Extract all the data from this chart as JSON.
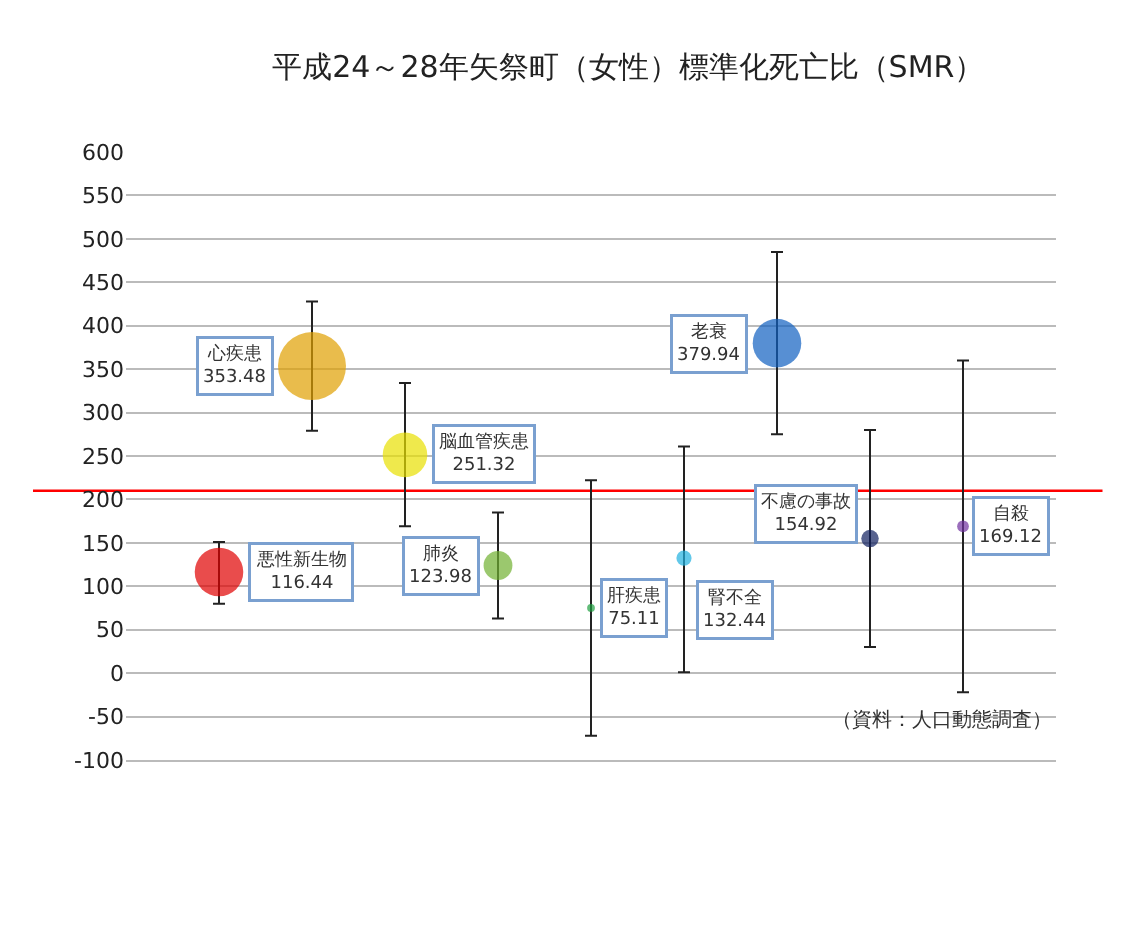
{
  "chart_data": {
    "type": "bubble",
    "title": "平成24～28年矢祭町（女性）標準化死亡比（SMR）",
    "categories": [
      null,
      null,
      null,
      null,
      null,
      null,
      null,
      null,
      null
    ],
    "series": [
      {
        "name": "悪性新生物",
        "color": "#e00000",
        "values": [
          116.44,
          null,
          null,
          null,
          null,
          null,
          null,
          null,
          null
        ],
        "sizes": [
          0.51,
          null,
          null,
          null,
          null,
          null,
          null,
          null,
          null
        ],
        "errors": [
          [
            80,
            151
          ],
          null,
          null,
          null,
          null,
          null,
          null,
          null,
          null
        ]
      },
      {
        "name": "心疾患",
        "color": "#e0a000",
        "values": [
          null,
          353.48,
          null,
          null,
          null,
          null,
          null,
          null,
          null
        ],
        "sizes": [
          null,
          1,
          null,
          null,
          null,
          null,
          null,
          null,
          null
        ],
        "errors": [
          null,
          [
            279,
            428
          ],
          null,
          null,
          null,
          null,
          null,
          null,
          null
        ]
      },
      {
        "name": "脳血管疾患",
        "color": "#e8e000",
        "values": [
          null,
          null,
          251.32,
          null,
          null,
          null,
          null,
          null,
          null
        ],
        "sizes": [
          null,
          null,
          0.43,
          null,
          null,
          null,
          null,
          null,
          null
        ],
        "errors": [
          null,
          null,
          [
            169,
            334
          ],
          null,
          null,
          null,
          null,
          null,
          null
        ]
      },
      {
        "name": "肺炎",
        "color": "#70b030",
        "values": [
          null,
          null,
          null,
          123.98,
          null,
          null,
          null,
          null,
          null
        ],
        "sizes": [
          null,
          null,
          null,
          0.18,
          null,
          null,
          null,
          null,
          null
        ],
        "errors": [
          null,
          null,
          null,
          [
            63,
            185
          ],
          null,
          null,
          null,
          null,
          null
        ]
      },
      {
        "name": "肝疾患",
        "color": "#20a040",
        "values": [
          null,
          null,
          null,
          null,
          75.11,
          null,
          null,
          null,
          null
        ],
        "sizes": [
          null,
          null,
          null,
          null,
          0.013,
          null,
          null,
          null,
          null
        ],
        "errors": [
          null,
          null,
          null,
          null,
          [
            -72,
            222
          ],
          null,
          null,
          null,
          null
        ]
      },
      {
        "name": "腎不全",
        "color": "#20b0e0",
        "values": [
          null,
          null,
          null,
          null,
          null,
          132.44,
          null,
          null,
          null
        ],
        "sizes": [
          null,
          null,
          null,
          null,
          null,
          0.05,
          null,
          null,
          null
        ],
        "errors": [
          null,
          null,
          null,
          null,
          null,
          [
            1,
            261
          ],
          null,
          null,
          null
        ]
      },
      {
        "name": "老衰",
        "color": "#1060c0",
        "values": [
          null,
          null,
          null,
          null,
          null,
          null,
          379.94,
          null,
          null
        ],
        "sizes": [
          null,
          null,
          null,
          null,
          null,
          null,
          0.51,
          null,
          null
        ],
        "errors": [
          null,
          null,
          null,
          null,
          null,
          null,
          [
            275,
            485
          ],
          null,
          null
        ]
      },
      {
        "name": "不慮の事故",
        "color": "#102060",
        "values": [
          null,
          null,
          null,
          null,
          null,
          null,
          null,
          154.92,
          null
        ],
        "sizes": [
          null,
          null,
          null,
          null,
          null,
          null,
          null,
          0.066,
          null
        ],
        "errors": [
          null,
          null,
          null,
          null,
          null,
          null,
          null,
          [
            30,
            280
          ],
          null
        ]
      },
      {
        "name": "自殺",
        "color": "#7030a0",
        "values": [
          null,
          null,
          null,
          null,
          null,
          null,
          null,
          null,
          169.12
        ],
        "sizes": [
          null,
          null,
          null,
          null,
          null,
          null,
          null,
          null,
          0.03
        ],
        "errors": [
          null,
          null,
          null,
          null,
          null,
          null,
          null,
          null,
          [
            -22,
            360
          ]
        ]
      }
    ],
    "ylim": [
      -100,
      600
    ],
    "yticks": [
      -100,
      -50,
      0,
      50,
      100,
      150,
      200,
      250,
      300,
      350,
      400,
      450,
      500,
      550,
      600
    ],
    "grid": "y",
    "data_labels": true,
    "ref_lines": [
      {
        "axis": "y",
        "value": 210,
        "color": "#ff0000"
      }
    ],
    "annotations": [
      "（資料：人口動態調査）"
    ]
  }
}
